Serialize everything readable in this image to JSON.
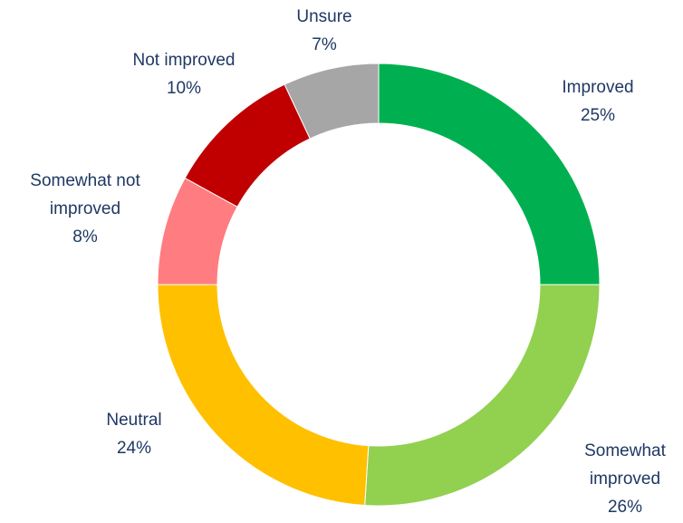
{
  "chart_data": {
    "type": "pie",
    "donut": true,
    "title": "",
    "legend": "none",
    "slices": [
      {
        "name": "Improved",
        "label_lines": [
          "Improved"
        ],
        "value": 25,
        "value_label": "25%",
        "color": "#00b050"
      },
      {
        "name": "Somewhat improved",
        "label_lines": [
          "Somewhat",
          "improved"
        ],
        "value": 26,
        "value_label": "26%",
        "color": "#92d050"
      },
      {
        "name": "Neutral",
        "label_lines": [
          "Neutral"
        ],
        "value": 24,
        "value_label": "24%",
        "color": "#ffc000"
      },
      {
        "name": "Somewhat not improved",
        "label_lines": [
          "Somewhat not",
          "improved"
        ],
        "value": 8,
        "value_label": "8%",
        "color": "#ff7c80"
      },
      {
        "name": "Not improved",
        "label_lines": [
          "Not improved"
        ],
        "value": 10,
        "value_label": "10%",
        "color": "#c00000"
      },
      {
        "name": "Unsure",
        "label_lines": [
          "Unsure"
        ],
        "value": 7,
        "value_label": "7%",
        "color": "#a6a6a6"
      }
    ]
  }
}
